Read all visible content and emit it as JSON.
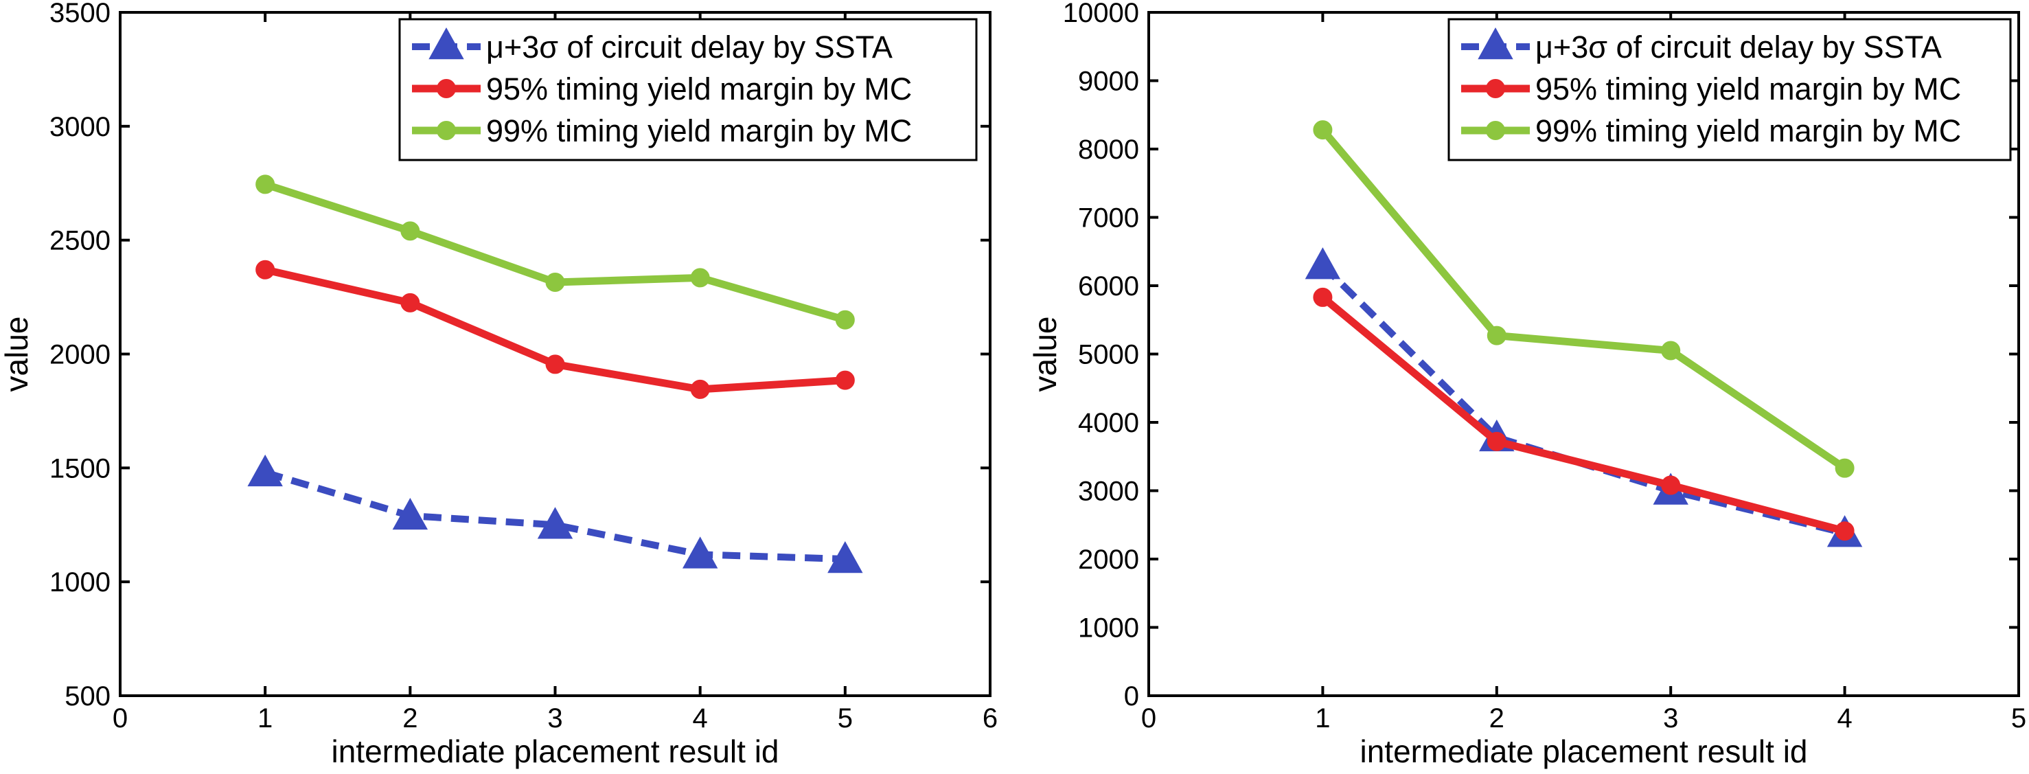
{
  "chart_data": [
    {
      "type": "line",
      "title": "",
      "xlabel": "intermediate placement result id",
      "ylabel": "value",
      "xlim": [
        0,
        6
      ],
      "ylim": [
        500,
        3500
      ],
      "xticks": [
        0,
        1,
        2,
        3,
        4,
        5,
        6
      ],
      "yticks": [
        500,
        1000,
        1500,
        2000,
        2500,
        3000,
        3500
      ],
      "grid": false,
      "legend_position": "top-right",
      "x": [
        1,
        2,
        3,
        4,
        5
      ],
      "series": [
        {
          "name": "μ+3σ of circuit delay by SSTA",
          "values": [
            1480,
            1290,
            1250,
            1120,
            1100
          ],
          "color": "#3B4CC0",
          "style": "dashed",
          "marker": "triangle"
        },
        {
          "name": "95% timing yield margin by MC",
          "values": [
            2370,
            2225,
            1955,
            1845,
            1885
          ],
          "color": "#E8262A",
          "style": "solid",
          "marker": "circle"
        },
        {
          "name": "99% timing yield margin by MC",
          "values": [
            2745,
            2540,
            2315,
            2335,
            2150
          ],
          "color": "#8DC63F",
          "style": "solid",
          "marker": "circle"
        }
      ]
    },
    {
      "type": "line",
      "title": "",
      "xlabel": "intermediate placement result id",
      "ylabel": "value",
      "xlim": [
        0,
        5
      ],
      "ylim": [
        0,
        10000
      ],
      "xticks": [
        0,
        1,
        2,
        3,
        4,
        5
      ],
      "yticks": [
        0,
        1000,
        2000,
        3000,
        4000,
        5000,
        6000,
        7000,
        8000,
        9000,
        10000
      ],
      "grid": false,
      "legend_position": "top-right",
      "x": [
        1,
        2,
        3,
        4
      ],
      "series": [
        {
          "name": "μ+3σ of circuit delay by SSTA",
          "values": [
            6300,
            3780,
            3000,
            2380
          ],
          "color": "#3B4CC0",
          "style": "dashed",
          "marker": "triangle"
        },
        {
          "name": "95% timing yield margin by MC",
          "values": [
            5830,
            3720,
            3080,
            2410
          ],
          "color": "#E8262A",
          "style": "solid",
          "marker": "circle"
        },
        {
          "name": "99% timing yield margin by MC",
          "values": [
            8280,
            5270,
            5050,
            3330
          ],
          "color": "#8DC63F",
          "style": "solid",
          "marker": "circle"
        }
      ]
    }
  ]
}
